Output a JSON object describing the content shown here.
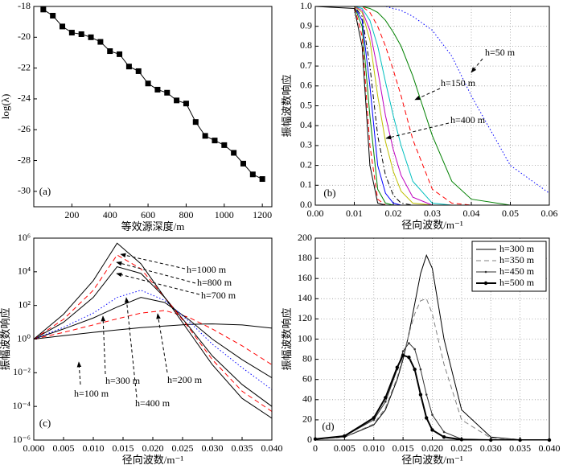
{
  "chart_data": [
    {
      "type": "line",
      "panel_label": "(a)",
      "xlabel": "等效源深度/m",
      "ylabel": "log(λ)",
      "x": [
        50,
        100,
        150,
        200,
        250,
        300,
        350,
        400,
        450,
        500,
        550,
        600,
        650,
        700,
        750,
        800,
        850,
        900,
        950,
        1000,
        1050,
        1100,
        1150,
        1200
      ],
      "series": [
        {
          "color": "#000000",
          "line_style": "solid",
          "marker": "square",
          "values": [
            -18.2,
            -18.6,
            -19.3,
            -19.7,
            -19.8,
            -20.0,
            -20.3,
            -20.9,
            -21.1,
            -21.9,
            -22.2,
            -23.0,
            -23.4,
            -23.6,
            -24.1,
            -24.3,
            -25.5,
            -26.4,
            -26.7,
            -27.0,
            -27.5,
            -28.2,
            -28.9,
            -29.2
          ]
        }
      ],
      "xlim": [
        0,
        1250
      ],
      "ylim": [
        -31,
        -18
      ],
      "xticks": [
        200,
        400,
        600,
        800,
        1000,
        1200
      ],
      "yticks": [
        -30,
        -28,
        -26,
        -24,
        -22,
        -20,
        -18
      ],
      "grid": false,
      "log_y": false
    },
    {
      "type": "line",
      "panel_label": "(b)",
      "xlabel": "径向波数/m⁻¹",
      "ylabel": "振幅波数响应",
      "annotations": [
        "h=50 m",
        "h=150 m",
        "h=400 m"
      ],
      "x": [
        0,
        0.01,
        0.012,
        0.014,
        0.016,
        0.018,
        0.02,
        0.022,
        0.025,
        0.03,
        0.035,
        0.04,
        0.05,
        0.06
      ],
      "series": [
        {
          "color": "#0000ff",
          "line_style": "dotted",
          "values": [
            1,
            1,
            1,
            1,
            1,
            1,
            0.99,
            0.98,
            0.95,
            0.88,
            0.75,
            0.55,
            0.2,
            0.06
          ]
        },
        {
          "color": "#008000",
          "line_style": "solid",
          "values": [
            1,
            1,
            1,
            0.99,
            0.97,
            0.93,
            0.87,
            0.8,
            0.65,
            0.35,
            0.12,
            0.03,
            0,
            0
          ]
        },
        {
          "color": "#ff0000",
          "line_style": "dashed",
          "values": [
            1,
            1,
            1,
            0.97,
            0.9,
            0.8,
            0.68,
            0.55,
            0.33,
            0.08,
            0.01,
            0,
            0,
            0
          ]
        },
        {
          "color": "#00bfbf",
          "line_style": "solid",
          "values": [
            1,
            1,
            0.99,
            0.93,
            0.8,
            0.62,
            0.45,
            0.3,
            0.12,
            0.01,
            0,
            0,
            0,
            0
          ]
        },
        {
          "color": "#bf00bf",
          "line_style": "solid",
          "values": [
            1,
            1,
            0.98,
            0.88,
            0.68,
            0.45,
            0.28,
            0.15,
            0.04,
            0,
            0,
            0,
            0,
            0
          ]
        },
        {
          "color": "#bfbf00",
          "line_style": "solid",
          "values": [
            1,
            1,
            0.97,
            0.83,
            0.55,
            0.32,
            0.17,
            0.07,
            0.01,
            0,
            0,
            0,
            0,
            0
          ]
        },
        {
          "color": "#000000",
          "line_style": "dashdot",
          "values": [
            1,
            1,
            0.95,
            0.7,
            0.35,
            0.15,
            0.05,
            0.01,
            0,
            0,
            0,
            0,
            0,
            0
          ]
        },
        {
          "color": "#0000ff",
          "line_style": "solid",
          "values": [
            1,
            1,
            0.93,
            0.6,
            0.2,
            0.06,
            0.01,
            0,
            0,
            0,
            0,
            0,
            0,
            0
          ]
        },
        {
          "color": "#008000",
          "line_style": "solid",
          "values": [
            1,
            1,
            0.9,
            0.45,
            0.08,
            0.01,
            0,
            0,
            0,
            0,
            0,
            0,
            0,
            0
          ]
        },
        {
          "color": "#ff0000",
          "line_style": "dashed",
          "values": [
            1,
            1,
            0.85,
            0.3,
            0.03,
            0,
            0,
            0,
            0,
            0,
            0,
            0,
            0,
            0
          ]
        },
        {
          "color": "#000000",
          "line_style": "solid",
          "values": [
            1,
            0.99,
            0.8,
            0.2,
            0.01,
            0,
            0,
            0,
            0,
            0,
            0,
            0,
            0,
            0
          ]
        }
      ],
      "xlim": [
        0,
        0.06
      ],
      "ylim": [
        0,
        1
      ],
      "xticks": [
        {
          "value": 0,
          "label": "0.00"
        },
        0.01,
        0.02,
        0.03,
        0.04,
        0.05,
        0.06
      ],
      "yticks": [
        {
          "value": 0,
          "label": "0.0"
        },
        0.1,
        0.2,
        0.3,
        0.4,
        0.5,
        0.6,
        0.7,
        0.8,
        0.9,
        {
          "value": 1,
          "label": "1.0"
        }
      ],
      "grid": true,
      "log_y": false
    },
    {
      "type": "line",
      "panel_label": "(c)",
      "xlabel": "径向波数/m⁻¹",
      "ylabel": "振幅波数响应",
      "annotations": [
        "h=1000 m",
        "h=800 m",
        "h=700 m",
        "h=100 m",
        "h=300 m",
        "h=400 m",
        "h=200 m"
      ],
      "x": [
        0,
        0.005,
        0.01,
        0.014,
        0.018,
        0.022,
        0.026,
        0.03,
        0.035,
        0.04
      ],
      "series": [
        {
          "color": "#000000",
          "line_style": "solid",
          "values": [
            1,
            1.6,
            2.5,
            3.5,
            4.8,
            6,
            7.5,
            8,
            7,
            4.5
          ]
        },
        {
          "color": "#ff0000",
          "line_style": "dashed",
          "values": [
            1,
            2.5,
            7,
            16,
            35,
            50,
            20,
            4,
            0.4,
            0.03
          ]
        },
        {
          "color": "#000000",
          "line_style": "solid",
          "values": [
            1,
            4,
            18,
            80,
            300,
            150,
            15,
            1,
            0.06,
            0.005
          ]
        },
        {
          "color": "#0000ff",
          "line_style": "dotted",
          "values": [
            1,
            5,
            35,
            300,
            800,
            200,
            12,
            0.5,
            0.02,
            0.001
          ]
        },
        {
          "color": "#000000",
          "line_style": "solid",
          "values": [
            1,
            10,
            300,
            20000,
            8000,
            300,
            6,
            0.1,
            0.002,
            0.0001
          ]
        },
        {
          "color": "#ff0000",
          "line_style": "dashed",
          "values": [
            1,
            15,
            800,
            100000,
            15000,
            300,
            5,
            0.06,
            0.0008,
            5e-05
          ]
        },
        {
          "color": "#000000",
          "line_style": "solid",
          "values": [
            1,
            30,
            3000,
            500000,
            30000,
            300,
            3,
            0.03,
            0.0003,
            2e-05
          ]
        }
      ],
      "xlim": [
        0,
        0.04
      ],
      "ylim": [
        1e-06,
        1000000
      ],
      "xticks": [
        {
          "value": 0,
          "label": "0.000"
        },
        0.005,
        {
          "value": 0.01,
          "label": "0.010"
        },
        0.015,
        {
          "value": 0.02,
          "label": "0.020"
        },
        0.025,
        {
          "value": 0.03,
          "label": "0.030"
        },
        0.035,
        {
          "value": 0.04,
          "label": "0.040"
        }
      ],
      "yticks": [
        {
          "value": 1e-06,
          "label": "10⁻⁶"
        },
        {
          "value": 0.0001,
          "label": "10⁻⁴"
        },
        {
          "value": 0.01,
          "label": "10⁻²"
        },
        {
          "value": 1,
          "label": "10⁰"
        },
        {
          "value": 100,
          "label": "10²"
        },
        {
          "value": 10000,
          "label": "10⁴"
        },
        {
          "value": 1000000,
          "label": "10⁶"
        }
      ],
      "grid": false,
      "log_y": true
    },
    {
      "type": "line",
      "panel_label": "(d)",
      "xlabel": "径向波数/m⁻¹",
      "ylabel": "振幅波数响应",
      "legend": "upper right",
      "x": [
        0,
        0.005,
        0.01,
        0.012,
        0.014,
        0.015,
        0.016,
        0.017,
        0.018,
        0.019,
        0.02,
        0.022,
        0.025,
        0.03,
        0.035,
        0.04
      ],
      "series": [
        {
          "name": "h=300 m",
          "color": "#000000",
          "line_style": "solid",
          "values": [
            1,
            3,
            15,
            30,
            60,
            80,
            105,
            135,
            165,
            183,
            170,
            100,
            30,
            3,
            0.3,
            0
          ]
        },
        {
          "name": "h=350 m",
          "color": "#808080",
          "line_style": "dashed",
          "values": [
            1,
            3,
            16,
            32,
            62,
            82,
            105,
            125,
            138,
            140,
            125,
            75,
            20,
            2,
            0.2,
            0
          ]
        },
        {
          "name": "h=450 m",
          "color": "#333333",
          "line_style": "solid",
          "marker": "small-dot",
          "values": [
            1,
            4,
            20,
            38,
            70,
            88,
            96,
            90,
            70,
            45,
            25,
            8,
            1,
            0,
            0,
            0
          ]
        },
        {
          "name": "h=500 m",
          "color": "#000000",
          "line_style": "solid",
          "marker": "dot",
          "values": [
            1,
            4,
            22,
            42,
            72,
            84,
            82,
            70,
            45,
            22,
            10,
            3,
            0.5,
            0,
            0,
            0
          ]
        }
      ],
      "xlim": [
        0,
        0.04
      ],
      "ylim": [
        0,
        200
      ],
      "xticks": [
        0,
        0.005,
        {
          "value": 0.01,
          "label": "0.010"
        },
        0.015,
        {
          "value": 0.02,
          "label": "0.020"
        },
        0.025,
        {
          "value": 0.03,
          "label": "0.030"
        },
        0.035,
        {
          "value": 0.04,
          "label": "0.040"
        }
      ],
      "yticks": [
        0,
        20,
        40,
        60,
        80,
        100,
        120,
        140,
        160,
        180,
        200
      ],
      "grid": true,
      "log_y": false
    }
  ]
}
